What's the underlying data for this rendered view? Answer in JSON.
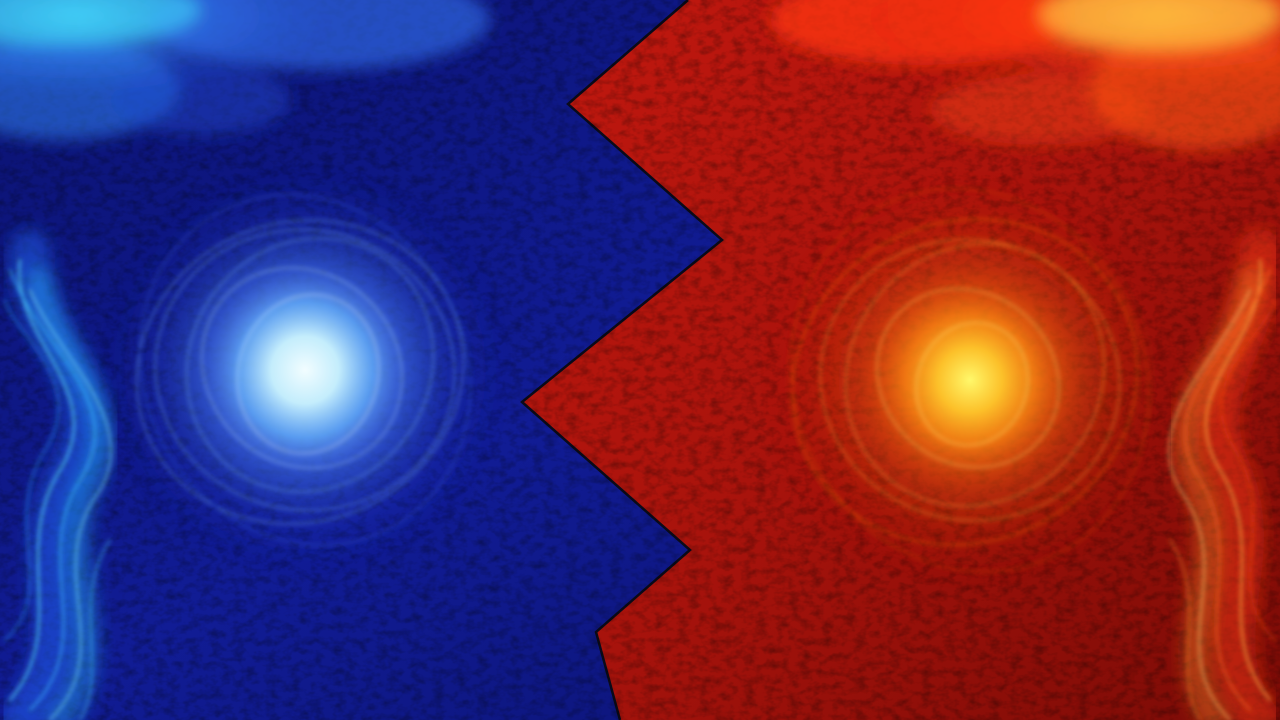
{
  "scene": {
    "description_name": "blue-vs-red-elemental-wallpaper",
    "colors": {
      "blue_background": "#101a8c",
      "blue_background_dark": "#070c55",
      "red_background": "#b0140e",
      "red_background_dark": "#6a0805",
      "divider": "#0b0b1a",
      "blue_orb_core": "#e8fbff",
      "blue_orb_mid": "#5aa8ff",
      "blue_orb_outer": "#2340d8",
      "fire_orb_core": "#fff35a",
      "fire_orb_mid": "#ff9a1a",
      "fire_orb_outer": "#e0400a",
      "blue_smoke": "#3fa0ff",
      "cyan_smoke": "#3fe8ff",
      "red_smoke": "#ff3a10",
      "orange_smoke": "#ffa020"
    }
  }
}
